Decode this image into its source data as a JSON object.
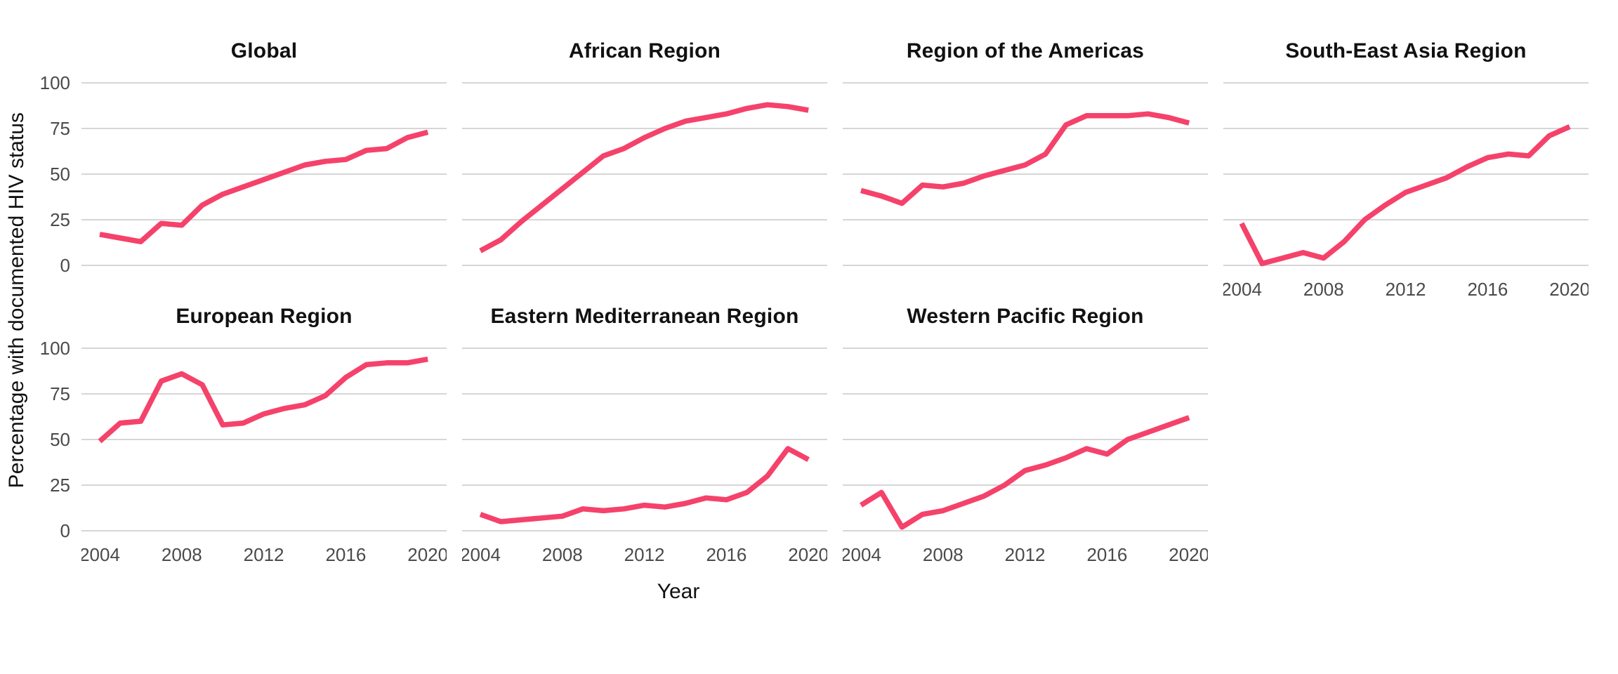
{
  "figure": {
    "background_color": "#ffffff",
    "gridline_color": "#d6d6d6",
    "title_color": "#111111",
    "tick_label_color": "#4a4a4a"
  },
  "chart_data": {
    "type": "line",
    "layout": "facet-grid-4x2",
    "xlabel": "Year",
    "ylabel": "Percentage with documented HIV status",
    "x": [
      2004,
      2005,
      2006,
      2007,
      2008,
      2009,
      2010,
      2011,
      2012,
      2013,
      2014,
      2015,
      2016,
      2017,
      2018,
      2019,
      2020
    ],
    "xticks": [
      2004,
      2008,
      2012,
      2016,
      2020
    ],
    "yticks": [
      0,
      25,
      50,
      75,
      100
    ],
    "ylim": [
      0,
      100
    ],
    "grid": "horizontal-only",
    "legend": "none",
    "line_color": "#f5426b",
    "facets": [
      {
        "title": "Global",
        "values": [
          17,
          15,
          13,
          23,
          22,
          33,
          39,
          43,
          47,
          51,
          55,
          57,
          58,
          63,
          64,
          70,
          73
        ]
      },
      {
        "title": "African Region",
        "values": [
          8,
          14,
          24,
          33,
          42,
          51,
          60,
          64,
          70,
          75,
          79,
          81,
          83,
          86,
          88,
          87,
          85
        ]
      },
      {
        "title": "Region of the Americas",
        "values": [
          41,
          38,
          34,
          44,
          43,
          45,
          49,
          52,
          55,
          61,
          77,
          82,
          82,
          82,
          83,
          81,
          78
        ]
      },
      {
        "title": "South-East Asia Region",
        "values": [
          23,
          1,
          4,
          7,
          4,
          13,
          25,
          33,
          40,
          44,
          48,
          54,
          59,
          61,
          60,
          71,
          76
        ]
      },
      {
        "title": "European Region",
        "values": [
          49,
          59,
          60,
          82,
          86,
          80,
          58,
          59,
          64,
          67,
          69,
          74,
          84,
          91,
          92,
          92,
          94
        ]
      },
      {
        "title": "Eastern Mediterranean Region",
        "values": [
          9,
          5,
          6,
          7,
          8,
          12,
          11,
          12,
          14,
          13,
          15,
          18,
          17,
          21,
          30,
          45,
          39
        ]
      },
      {
        "title": "Western Pacific Region",
        "values": [
          14,
          21,
          2,
          9,
          11,
          15,
          19,
          25,
          33,
          36,
          40,
          45,
          42,
          50,
          54,
          58,
          62
        ]
      }
    ]
  }
}
